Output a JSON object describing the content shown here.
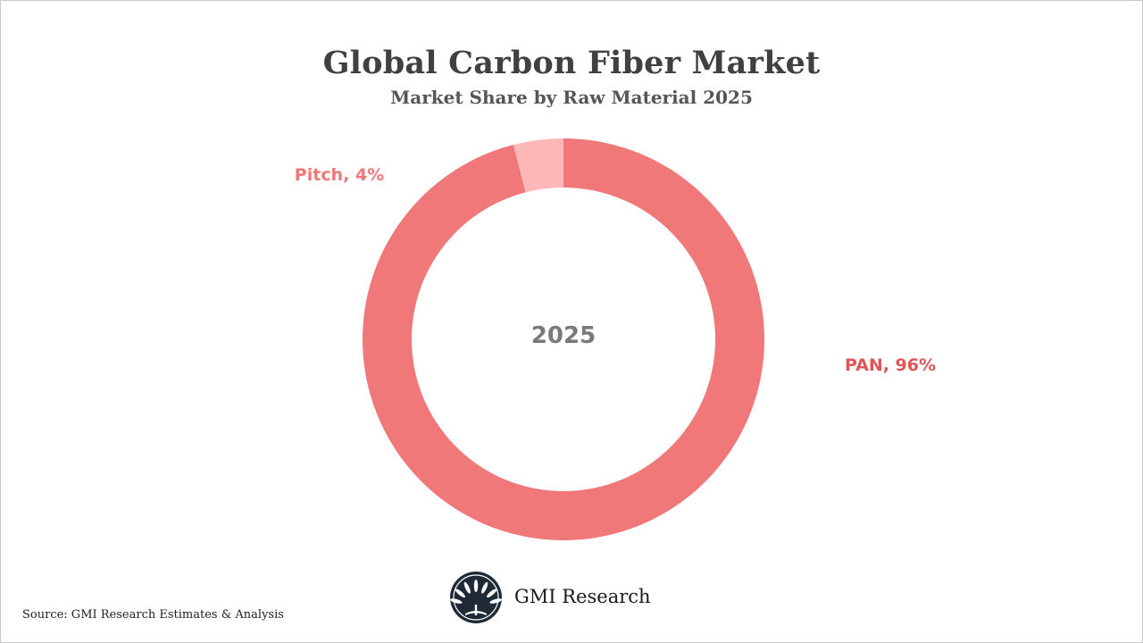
{
  "chart_data": {
    "type": "pie",
    "title": "Global Carbon Fiber Market",
    "subtitle": "Market Share by Raw Material 2025",
    "center_label": "2025",
    "categories": [
      "PAN",
      "Pitch"
    ],
    "values": [
      96,
      4
    ],
    "labels": [
      "PAN, 96%",
      "Pitch, 4%"
    ],
    "colors": [
      "#f07878",
      "#ffb8b8"
    ],
    "label_colors": [
      "#e05555",
      "#f07878"
    ]
  },
  "footer": {
    "source": "Source: GMI Research Estimates & Analysis",
    "brand": "GMI Research"
  }
}
